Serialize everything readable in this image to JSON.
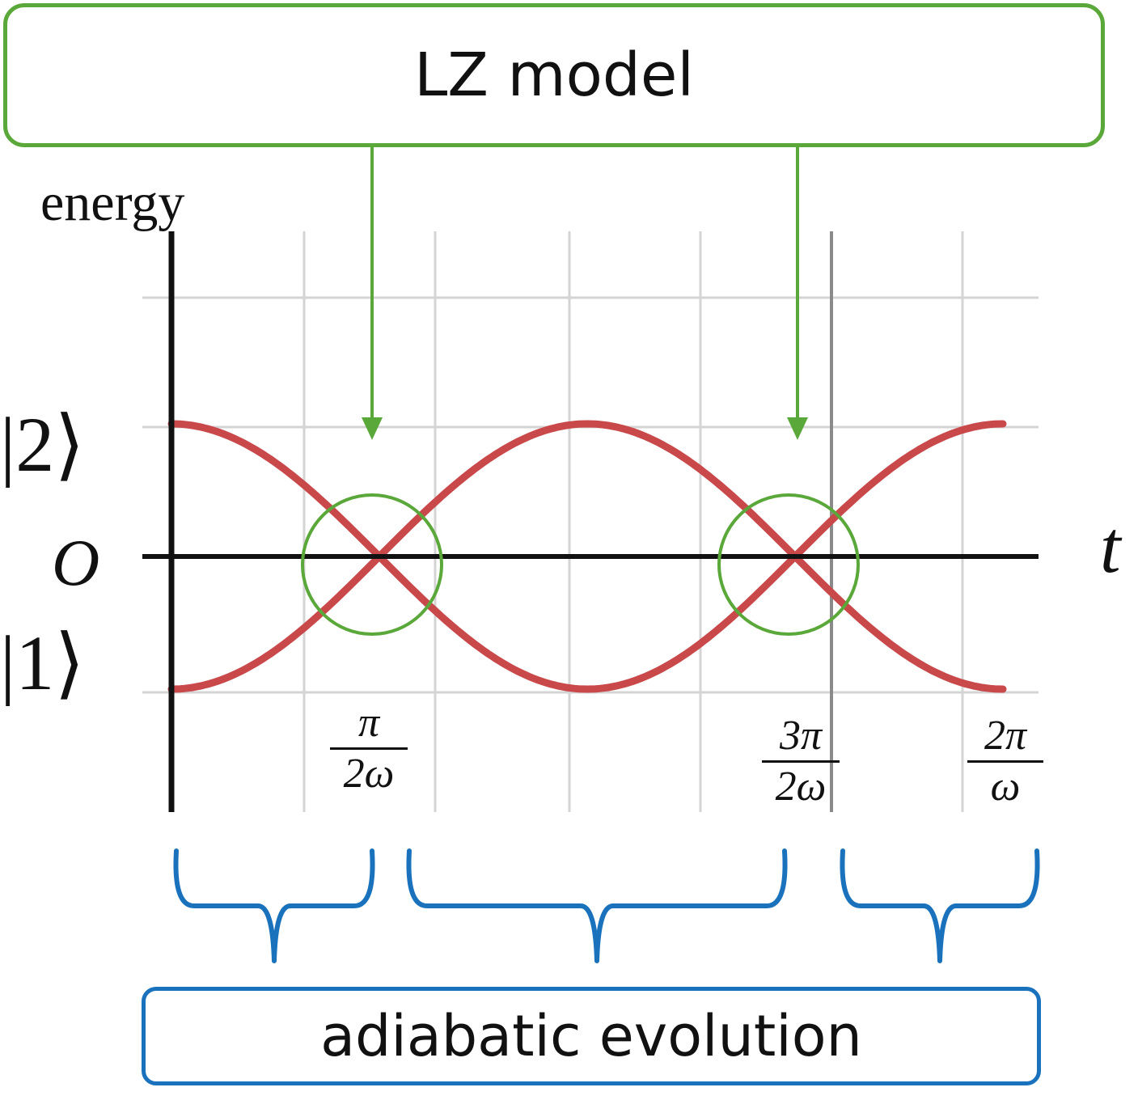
{
  "top_box": {
    "label": "LZ model"
  },
  "bottom_box": {
    "label": "adiabatic evolution"
  },
  "axes": {
    "y_label": "energy",
    "x_label": "t",
    "origin_label": "O"
  },
  "levels": {
    "upper": {
      "ket": "|2⟩"
    },
    "lower": {
      "ket": "|1⟩"
    }
  },
  "x_ticks": [
    {
      "num": "π",
      "den": "2ω"
    },
    {
      "num": "3π",
      "den": "2ω"
    },
    {
      "num": "2π",
      "den": "ω"
    }
  ],
  "colors": {
    "curve": "#c9484a",
    "lz_accent": "#5aa83a",
    "adiabatic_accent": "#1a72bd",
    "grid": "#d4d4d4",
    "axis": "#111111"
  }
}
